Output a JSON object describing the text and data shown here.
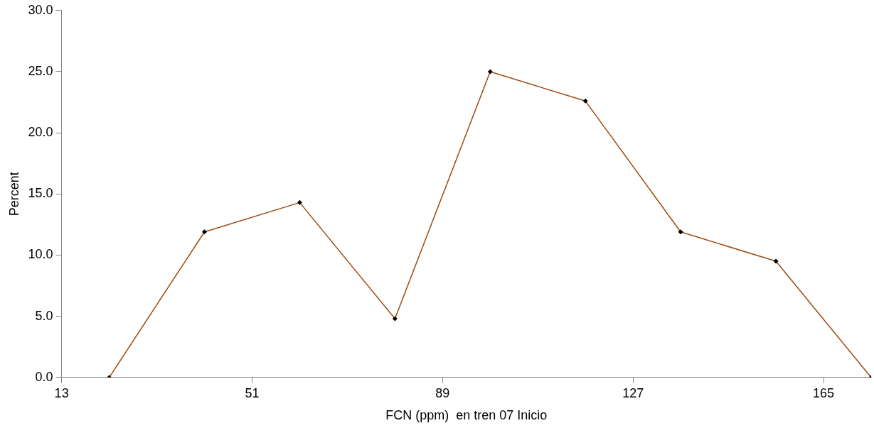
{
  "chart_data": {
    "type": "line",
    "xlabel": "FCN (ppm)  en tren 07 Inicio",
    "ylabel": "Percent",
    "x": [
      22.5,
      41.5,
      60.5,
      79.5,
      98.5,
      117.5,
      136.5,
      155.5,
      174.5
    ],
    "series": [
      {
        "color": "#9c4a0f",
        "values": [
          0.0,
          11.9,
          14.3,
          4.8,
          25.0,
          22.6,
          11.9,
          9.5,
          0.0
        ]
      }
    ],
    "xlim": [
      13,
      174.5
    ],
    "xticks": [
      13,
      51,
      89,
      127,
      165
    ],
    "ylim": [
      0,
      30
    ],
    "yticks": [
      {
        "value": 0,
        "label": "0.0"
      },
      {
        "value": 5,
        "label": "5.0"
      },
      {
        "value": 10,
        "label": "10.0"
      },
      {
        "value": 15,
        "label": "15.0"
      },
      {
        "value": 20,
        "label": "20.0"
      },
      {
        "value": 25,
        "label": "25.0"
      },
      {
        "value": 30,
        "label": "30.0"
      }
    ],
    "grid": false,
    "legend": false,
    "marker": "diamond",
    "line_style": "solid"
  }
}
